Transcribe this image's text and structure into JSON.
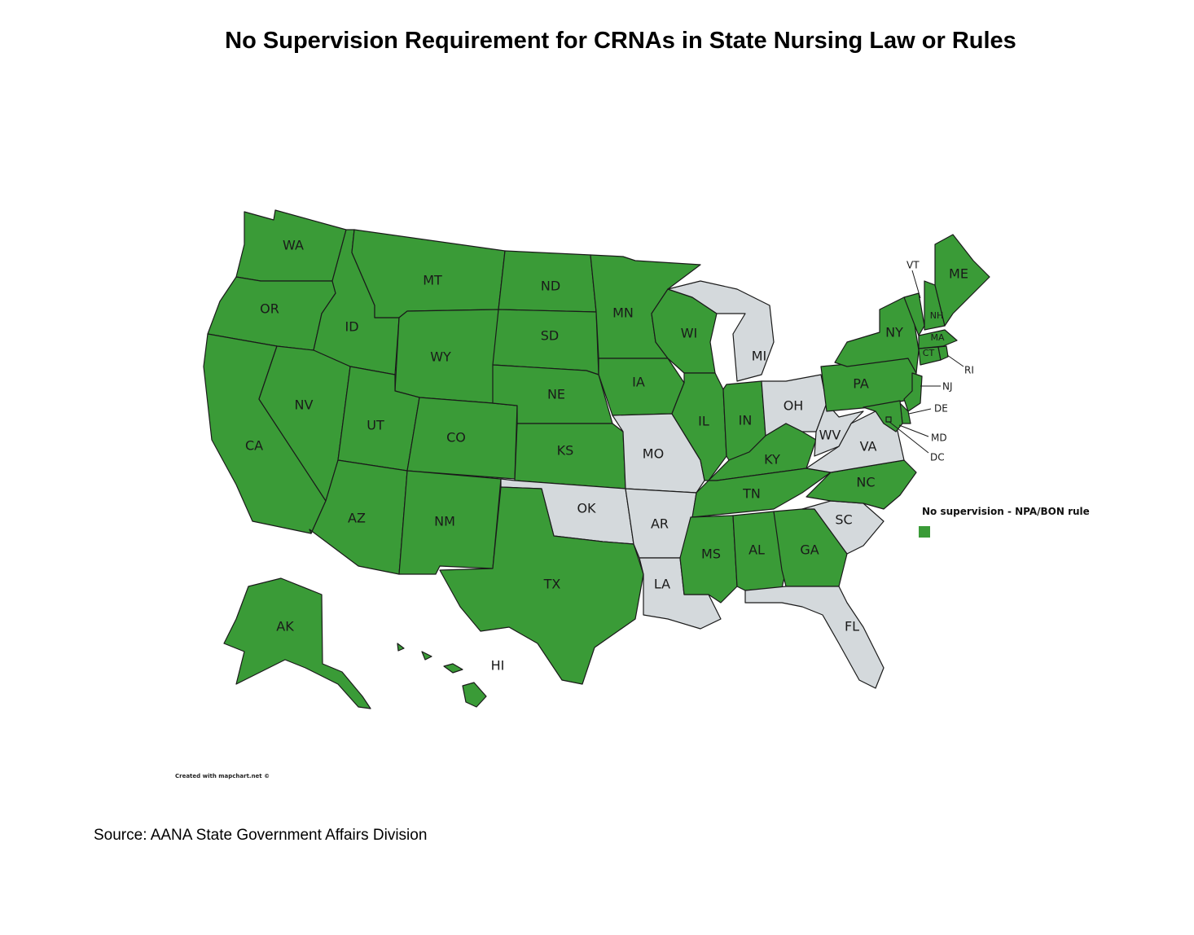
{
  "title": "No Supervision Requirement for CRNAs in State Nursing Law or Rules",
  "legend": {
    "label": "No supervision - NPA/BON rule",
    "color": "#3a9b37"
  },
  "colors": {
    "no_supervision": "#3a9b37",
    "other": "#d4d9dc",
    "border": "#1a1a1a"
  },
  "credit": "Created with mapchart.net ©",
  "source": "Source:  AANA State Government Affairs Division",
  "states": [
    {
      "abbr": "WA",
      "category": "no_supervision"
    },
    {
      "abbr": "OR",
      "category": "no_supervision"
    },
    {
      "abbr": "CA",
      "category": "no_supervision"
    },
    {
      "abbr": "ID",
      "category": "no_supervision"
    },
    {
      "abbr": "NV",
      "category": "no_supervision"
    },
    {
      "abbr": "MT",
      "category": "no_supervision"
    },
    {
      "abbr": "WY",
      "category": "no_supervision"
    },
    {
      "abbr": "UT",
      "category": "no_supervision"
    },
    {
      "abbr": "AZ",
      "category": "no_supervision"
    },
    {
      "abbr": "CO",
      "category": "no_supervision"
    },
    {
      "abbr": "NM",
      "category": "no_supervision"
    },
    {
      "abbr": "ND",
      "category": "no_supervision"
    },
    {
      "abbr": "SD",
      "category": "no_supervision"
    },
    {
      "abbr": "NE",
      "category": "no_supervision"
    },
    {
      "abbr": "KS",
      "category": "no_supervision"
    },
    {
      "abbr": "OK",
      "category": "other"
    },
    {
      "abbr": "TX",
      "category": "no_supervision"
    },
    {
      "abbr": "MN",
      "category": "no_supervision"
    },
    {
      "abbr": "IA",
      "category": "no_supervision"
    },
    {
      "abbr": "MO",
      "category": "other"
    },
    {
      "abbr": "AR",
      "category": "other"
    },
    {
      "abbr": "LA",
      "category": "other"
    },
    {
      "abbr": "WI",
      "category": "no_supervision"
    },
    {
      "abbr": "IL",
      "category": "no_supervision"
    },
    {
      "abbr": "MI",
      "category": "other"
    },
    {
      "abbr": "IN",
      "category": "no_supervision"
    },
    {
      "abbr": "OH",
      "category": "other"
    },
    {
      "abbr": "KY",
      "category": "no_supervision"
    },
    {
      "abbr": "TN",
      "category": "no_supervision"
    },
    {
      "abbr": "MS",
      "category": "no_supervision"
    },
    {
      "abbr": "AL",
      "category": "no_supervision"
    },
    {
      "abbr": "GA",
      "category": "no_supervision"
    },
    {
      "abbr": "FL",
      "category": "other"
    },
    {
      "abbr": "SC",
      "category": "other"
    },
    {
      "abbr": "NC",
      "category": "no_supervision"
    },
    {
      "abbr": "VA",
      "category": "other"
    },
    {
      "abbr": "WV",
      "category": "other"
    },
    {
      "abbr": "PA",
      "category": "no_supervision"
    },
    {
      "abbr": "NY",
      "category": "no_supervision"
    },
    {
      "abbr": "VT",
      "category": "no_supervision"
    },
    {
      "abbr": "NH",
      "category": "no_supervision"
    },
    {
      "abbr": "ME",
      "category": "no_supervision"
    },
    {
      "abbr": "MA",
      "category": "no_supervision"
    },
    {
      "abbr": "CT",
      "category": "no_supervision"
    },
    {
      "abbr": "RI",
      "category": "no_supervision"
    },
    {
      "abbr": "NJ",
      "category": "no_supervision"
    },
    {
      "abbr": "DE",
      "category": "no_supervision"
    },
    {
      "abbr": "MD",
      "category": "no_supervision"
    },
    {
      "abbr": "DC",
      "category": "no_supervision"
    },
    {
      "abbr": "AK",
      "category": "no_supervision"
    },
    {
      "abbr": "HI",
      "category": "no_supervision"
    }
  ]
}
